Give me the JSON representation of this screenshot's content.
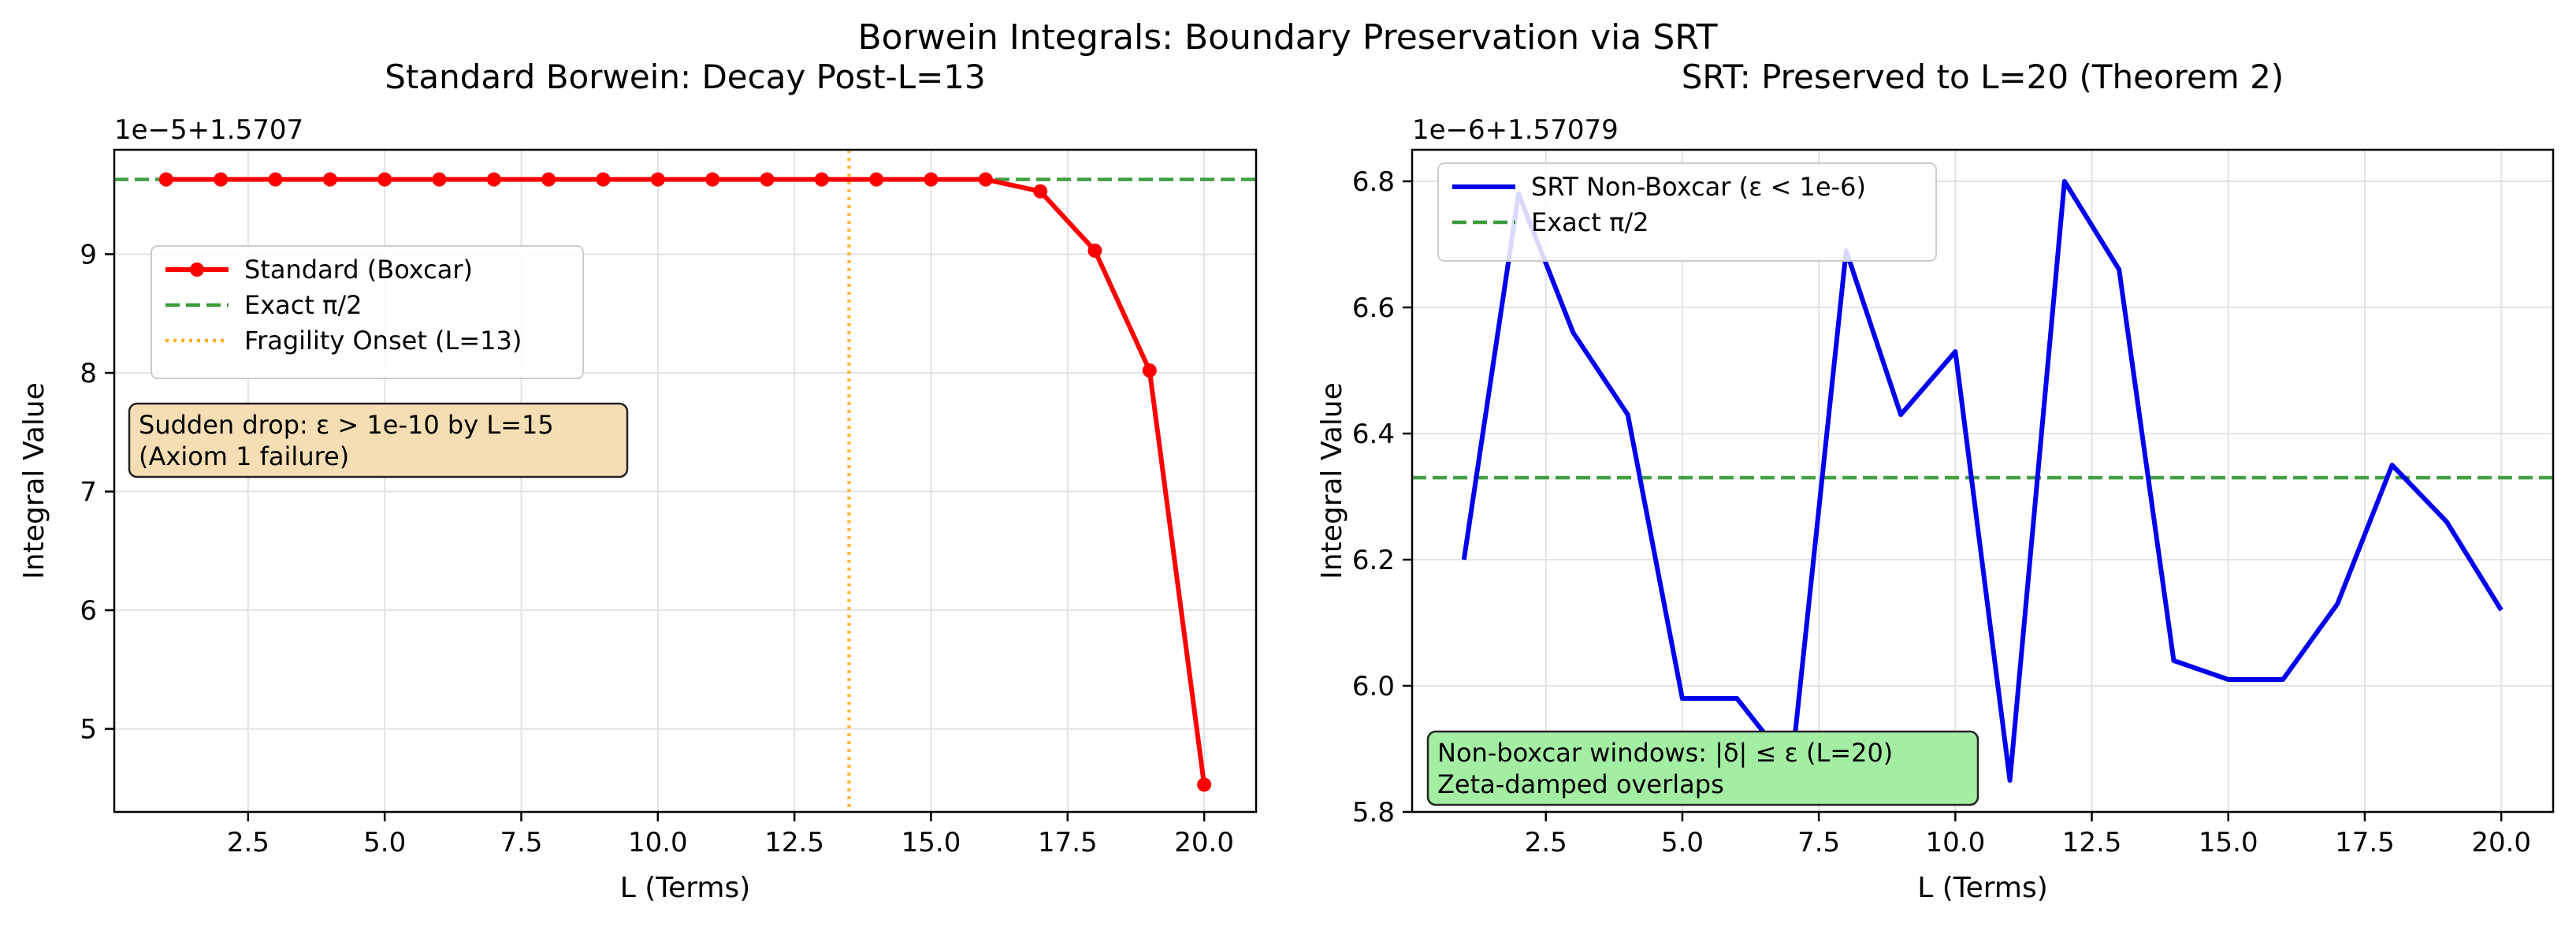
{
  "figure": {
    "suptitle": "Borwein Integrals: Boundary Preservation via SRT"
  },
  "chart_data": [
    {
      "type": "line",
      "title": "Standard Borwein: Decay Post-L=13",
      "xlabel": "L (Terms)",
      "ylabel": "Integral Value",
      "offset_label": "1e−5+1.5707",
      "xlim": [
        0.05,
        20.95
      ],
      "ylim": [
        4.3,
        9.88
      ],
      "xticks": [
        2.5,
        5.0,
        7.5,
        10.0,
        12.5,
        15.0,
        17.5,
        20.0
      ],
      "xtick_labels": [
        "2.5",
        "5.0",
        "7.5",
        "10.0",
        "12.5",
        "15.0",
        "17.5",
        "20.0"
      ],
      "yticks": [
        5,
        6,
        7,
        8,
        9
      ],
      "ytick_labels": [
        "5",
        "6",
        "7",
        "8",
        "9"
      ],
      "grid": true,
      "series": [
        {
          "name": "Standard (Boxcar)",
          "color": "#ff0000",
          "marker": "circle",
          "x": [
            1,
            2,
            3,
            4,
            5,
            6,
            7,
            8,
            9,
            10,
            11,
            12,
            13,
            14,
            15,
            16,
            17,
            18,
            19,
            20
          ],
          "y": [
            9.63,
            9.63,
            9.63,
            9.63,
            9.63,
            9.63,
            9.63,
            9.63,
            9.63,
            9.63,
            9.63,
            9.63,
            9.63,
            9.63,
            9.63,
            9.63,
            9.53,
            9.03,
            8.02,
            4.53
          ]
        }
      ],
      "hlines": [
        {
          "name": "Exact π/2",
          "y": 9.63,
          "color": "#3a9a3a",
          "style": "dashed"
        }
      ],
      "vlines": [
        {
          "name": "Fragility Onset (L=13)",
          "x": 13.5,
          "color": "#ffb020",
          "style": "dotted"
        }
      ],
      "legend_entries": [
        "Standard (Boxcar)",
        "Exact π/2",
        "Fragility Onset (L=13)"
      ],
      "legend_position": "center-left",
      "annotation": {
        "lines": [
          "Sudden drop: ε > 1e-10 by L=15",
          "(Axiom 1 failure)"
        ],
        "bg": "#f5deb3"
      }
    },
    {
      "type": "line",
      "title": "SRT: Preserved to L=20 (Theorem 2)",
      "xlabel": "L (Terms)",
      "ylabel": "Integral Value",
      "offset_label": "1e−6+1.57079",
      "xlim": [
        0.05,
        20.95
      ],
      "ylim": [
        5.8,
        6.85
      ],
      "xticks": [
        2.5,
        5.0,
        7.5,
        10.0,
        12.5,
        15.0,
        17.5,
        20.0
      ],
      "xtick_labels": [
        "2.5",
        "5.0",
        "7.5",
        "10.0",
        "12.5",
        "15.0",
        "17.5",
        "20.0"
      ],
      "yticks": [
        5.8,
        6.0,
        6.2,
        6.4,
        6.6,
        6.8
      ],
      "ytick_labels": [
        "5.8",
        "6.0",
        "6.2",
        "6.4",
        "6.6",
        "6.8"
      ],
      "grid": true,
      "series": [
        {
          "name": "SRT Non-Boxcar (ε < 1e-6)",
          "color": "#0000ee",
          "marker": "none",
          "x": [
            1,
            2,
            3,
            4,
            5,
            6,
            7,
            8,
            9,
            10,
            11,
            12,
            13,
            14,
            15,
            16,
            17,
            18,
            19,
            20
          ],
          "y": [
            6.2,
            6.78,
            6.56,
            6.43,
            5.98,
            5.98,
            5.87,
            6.69,
            6.43,
            6.53,
            5.85,
            6.8,
            6.66,
            6.04,
            6.01,
            6.01,
            6.13,
            6.35,
            6.26,
            6.12
          ]
        }
      ],
      "hlines": [
        {
          "name": "Exact π/2",
          "y": 6.33,
          "color": "#3a9a3a",
          "style": "dashed"
        }
      ],
      "vlines": [],
      "legend_entries": [
        "SRT Non-Boxcar (ε < 1e-6)",
        "Exact π/2"
      ],
      "legend_position": "upper-left",
      "annotation": {
        "lines": [
          "Non-boxcar windows: |δ| ≤ ε (L=20)",
          "Zeta-damped overlaps"
        ],
        "bg": "#a4eea4"
      }
    }
  ]
}
